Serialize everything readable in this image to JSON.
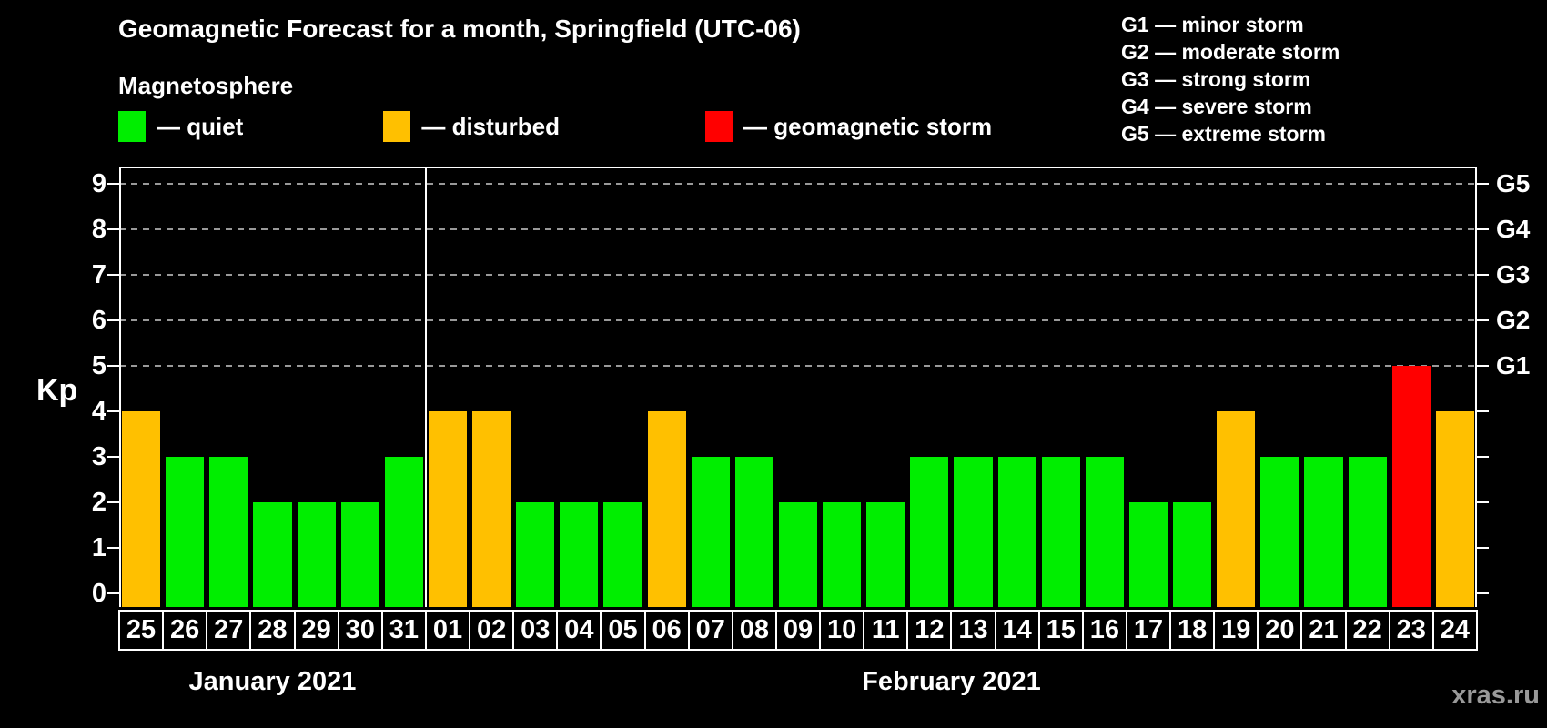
{
  "title": "Geomagnetic Forecast for a month, Springfield (UTC-06)",
  "subtitle": "Magnetosphere",
  "legend": {
    "items": [
      {
        "key": "quiet",
        "label": "— quiet",
        "color": "#00EE00"
      },
      {
        "key": "disturbed",
        "label": "— disturbed",
        "color": "#FFC000"
      },
      {
        "key": "storm",
        "label": "— geomagnetic storm",
        "color": "#FF0000"
      }
    ]
  },
  "storm_scale_legend": {
    "lines": [
      "G1 — minor storm",
      "G2 — moderate storm",
      "G3 — strong storm",
      "G4 — severe storm",
      "G5 — extreme storm"
    ]
  },
  "axes": {
    "y_label": "Kp",
    "y_ticks": [
      0,
      1,
      2,
      3,
      4,
      5,
      6,
      7,
      8,
      9
    ],
    "right_ticks": [
      0,
      1,
      2,
      3,
      4,
      5,
      6,
      7,
      8,
      9
    ],
    "right_labels": [
      {
        "kp": 5,
        "label": "G1"
      },
      {
        "kp": 6,
        "label": "G2"
      },
      {
        "kp": 7,
        "label": "G3"
      },
      {
        "kp": 8,
        "label": "G4"
      },
      {
        "kp": 9,
        "label": "G5"
      }
    ]
  },
  "watermark": "xras.ru",
  "chart_data": {
    "type": "bar",
    "title": "Geomagnetic Forecast for a month, Springfield (UTC-06)",
    "xlabel": "",
    "ylabel": "Kp",
    "ylim": [
      0,
      9
    ],
    "grid": "dashed horizontal at Kp 5-9 (G1-G5 levels)",
    "legend_position": "top",
    "categories": [
      "25",
      "26",
      "27",
      "28",
      "29",
      "30",
      "31",
      "01",
      "02",
      "03",
      "04",
      "05",
      "06",
      "07",
      "08",
      "09",
      "10",
      "11",
      "12",
      "13",
      "14",
      "15",
      "16",
      "17",
      "18",
      "19",
      "20",
      "21",
      "22",
      "23",
      "24"
    ],
    "values": [
      4,
      3,
      3,
      2,
      2,
      2,
      3,
      4,
      4,
      2,
      2,
      2,
      4,
      3,
      3,
      2,
      2,
      2,
      3,
      3,
      3,
      3,
      3,
      2,
      2,
      4,
      3,
      3,
      3,
      5,
      4
    ],
    "statuses": [
      "disturbed",
      "quiet",
      "quiet",
      "quiet",
      "quiet",
      "quiet",
      "quiet",
      "disturbed",
      "disturbed",
      "quiet",
      "quiet",
      "quiet",
      "disturbed",
      "quiet",
      "quiet",
      "quiet",
      "quiet",
      "quiet",
      "quiet",
      "quiet",
      "quiet",
      "quiet",
      "quiet",
      "quiet",
      "quiet",
      "disturbed",
      "quiet",
      "quiet",
      "quiet",
      "storm",
      "disturbed"
    ],
    "months": [
      {
        "label": "January 2021",
        "start": 0,
        "count": 7
      },
      {
        "label": "February 2021",
        "start": 7,
        "count": 24
      }
    ],
    "colors": {
      "quiet": "#00EE00",
      "disturbed": "#FFC000",
      "storm": "#FF0000"
    },
    "gridline_levels": [
      5,
      6,
      7,
      8,
      9
    ]
  }
}
